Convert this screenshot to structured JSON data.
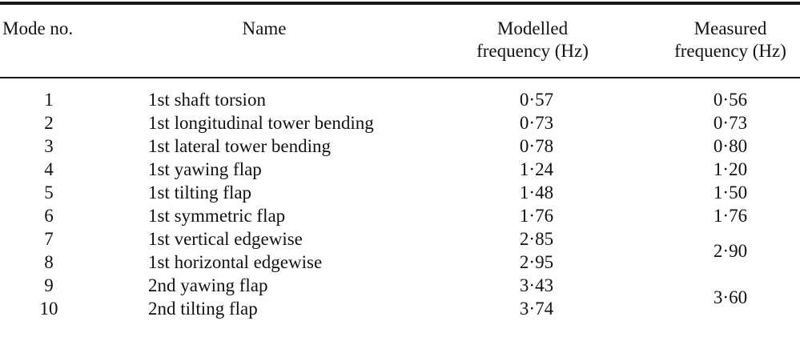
{
  "table": {
    "headers": [
      {
        "line1": "Mode no.",
        "line2": ""
      },
      {
        "line1": "Name",
        "line2": ""
      },
      {
        "line1": "Modelled",
        "line2": "frequency (Hz)"
      },
      {
        "line1": "Measured",
        "line2": "frequency (Hz)"
      }
    ],
    "rows": [
      {
        "mode": "1",
        "name": "1st shaft torsion",
        "modelled": "0·57",
        "measured": "0·56"
      },
      {
        "mode": "2",
        "name": "1st longitudinal tower bending",
        "modelled": "0·73",
        "measured": "0·73"
      },
      {
        "mode": "3",
        "name": "1st lateral tower bending",
        "modelled": "0·78",
        "measured": "0·80"
      },
      {
        "mode": "4",
        "name": "1st yawing flap",
        "modelled": "1·24",
        "measured": "1·20"
      },
      {
        "mode": "5",
        "name": "1st tilting flap",
        "modelled": "1·48",
        "measured": "1·50"
      },
      {
        "mode": "6",
        "name": "1st symmetric flap",
        "modelled": "1·76",
        "measured": "1·76"
      },
      {
        "mode": "7",
        "name": "1st vertical edgewise",
        "modelled": "2·85",
        "measured": "2·90",
        "measured_rowspan": 2
      },
      {
        "mode": "8",
        "name": "1st horizontal edgewise",
        "modelled": "2·95",
        "measured": null
      },
      {
        "mode": "9",
        "name": "2nd yawing flap",
        "modelled": "3·43",
        "measured": "3·60",
        "measured_rowspan": 2
      },
      {
        "mode": "10",
        "name": "2nd tilting flap",
        "modelled": "3·74",
        "measured": null
      }
    ],
    "colors": {
      "text": "#111111",
      "rule": "#1a1a1a",
      "background": "#ffffff"
    }
  },
  "chart_data": {
    "type": "table",
    "title": "",
    "columns": [
      "Mode no.",
      "Name",
      "Modelled frequency (Hz)",
      "Measured frequency (Hz)"
    ],
    "mode_numbers": [
      1,
      2,
      3,
      4,
      5,
      6,
      7,
      8,
      9,
      10
    ],
    "mode_names": [
      "1st shaft torsion",
      "1st longitudinal tower bending",
      "1st lateral tower bending",
      "1st yawing flap",
      "1st tilting flap",
      "1st symmetric flap",
      "1st vertical edgewise",
      "1st horizontal edgewise",
      "2nd yawing flap",
      "2nd tilting flap"
    ],
    "modelled_frequency_hz": [
      0.57,
      0.73,
      0.78,
      1.24,
      1.48,
      1.76,
      2.85,
      2.95,
      3.43,
      3.74
    ],
    "measured_frequency_hz": [
      0.56,
      0.73,
      0.8,
      1.2,
      1.5,
      1.76,
      2.9,
      2.9,
      3.6,
      3.6
    ],
    "notes": "Measured value 2·90 is a single merged cell spanning modes 7–8; 3·60 spans modes 9–10; decimal separator rendered as middle dot"
  }
}
